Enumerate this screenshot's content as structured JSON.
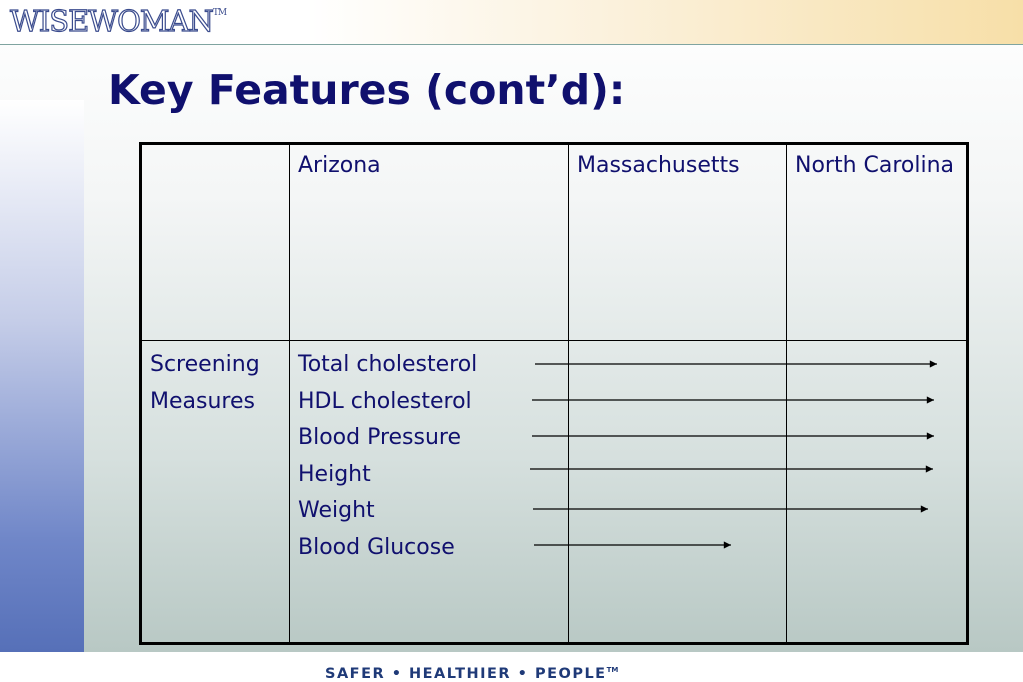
{
  "header": {
    "logo_text": "WISEWOMAN",
    "logo_tm": "TM"
  },
  "title": "Key Features (cont’d):",
  "table": {
    "headers": [
      "",
      "Arizona",
      "Massachusetts",
      "North Carolina"
    ],
    "row_label": [
      "Screening",
      "Measures"
    ],
    "measures": [
      "Total cholesterol",
      "HDL cholesterol",
      "Blood Pressure",
      "Height",
      "Weight",
      "Blood Glucose"
    ]
  },
  "footer": {
    "tagline": "SAFER • HEALTHIER • PEOPLE",
    "tagline_tm": "TM"
  },
  "colors": {
    "title": "#10106e",
    "logo_outline": "#3b4c8e",
    "tagline": "#1f3a78"
  }
}
